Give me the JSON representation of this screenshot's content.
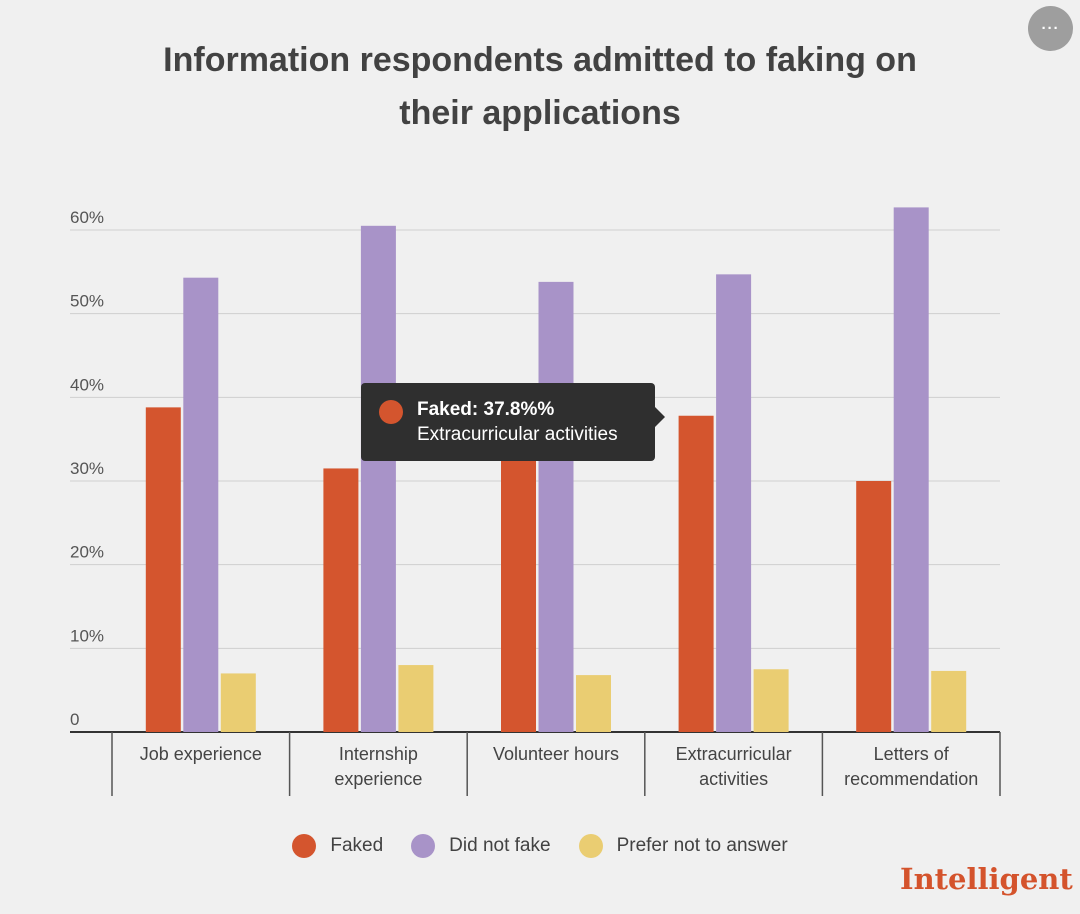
{
  "menu": {
    "label": "···"
  },
  "colors": {
    "faked": "#d4552e",
    "did_not_fake": "#a893c8",
    "prefer_not": "#eacd72"
  },
  "chart_data": {
    "type": "bar",
    "title": "Information respondents admitted to faking on their applications",
    "categories": [
      [
        "Job experience"
      ],
      [
        "Internship",
        "experience"
      ],
      [
        "Volunteer hours"
      ],
      [
        "Extracurricular",
        "activities"
      ],
      [
        "Letters of",
        "recommendation"
      ]
    ],
    "series": [
      {
        "name": "Faked",
        "values": [
          38.8,
          31.5,
          33.0,
          37.8,
          30.0
        ]
      },
      {
        "name": "Did not fake",
        "values": [
          54.3,
          60.5,
          53.8,
          54.7,
          62.7
        ]
      },
      {
        "name": "Prefer not to answer",
        "values": [
          7.0,
          8.0,
          6.8,
          7.5,
          7.3
        ]
      }
    ],
    "ylim": [
      0,
      60
    ],
    "yticks": [
      "0",
      "10%",
      "20%",
      "30%",
      "40%",
      "50%",
      "60%"
    ],
    "grid": true,
    "legend_position": "bottom"
  },
  "tooltip": {
    "title": "Faked: 37.8%%",
    "subtitle": "Extracurricular activities"
  },
  "brand": "Intelligent"
}
